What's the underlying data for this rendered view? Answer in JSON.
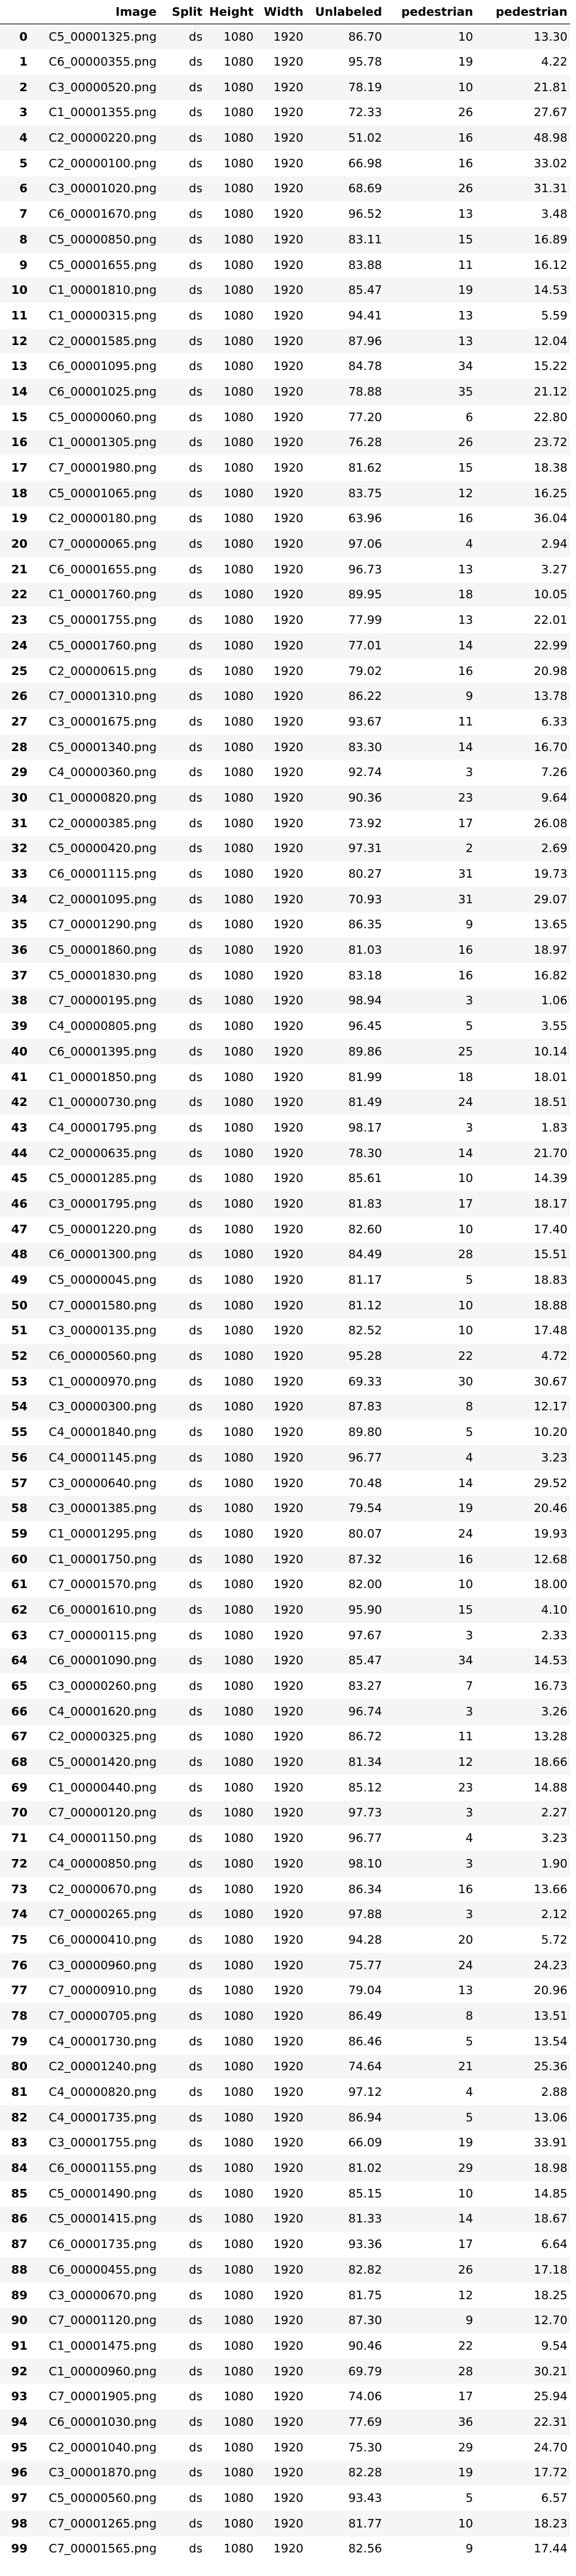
{
  "table": {
    "columns": [
      "",
      "Image",
      "Split",
      "Height",
      "Width",
      "Unlabeled",
      "pedestrian",
      "pedestrian"
    ],
    "rows": [
      [
        "0",
        "C5_00001325.png",
        "ds",
        "1080",
        "1920",
        "86.70",
        "10",
        "13.30"
      ],
      [
        "1",
        "C6_00000355.png",
        "ds",
        "1080",
        "1920",
        "95.78",
        "19",
        "4.22"
      ],
      [
        "2",
        "C3_00000520.png",
        "ds",
        "1080",
        "1920",
        "78.19",
        "10",
        "21.81"
      ],
      [
        "3",
        "C1_00001355.png",
        "ds",
        "1080",
        "1920",
        "72.33",
        "26",
        "27.67"
      ],
      [
        "4",
        "C2_00000220.png",
        "ds",
        "1080",
        "1920",
        "51.02",
        "16",
        "48.98"
      ],
      [
        "5",
        "C2_00000100.png",
        "ds",
        "1080",
        "1920",
        "66.98",
        "16",
        "33.02"
      ],
      [
        "6",
        "C3_00001020.png",
        "ds",
        "1080",
        "1920",
        "68.69",
        "26",
        "31.31"
      ],
      [
        "7",
        "C6_00001670.png",
        "ds",
        "1080",
        "1920",
        "96.52",
        "13",
        "3.48"
      ],
      [
        "8",
        "C5_00000850.png",
        "ds",
        "1080",
        "1920",
        "83.11",
        "15",
        "16.89"
      ],
      [
        "9",
        "C5_00001655.png",
        "ds",
        "1080",
        "1920",
        "83.88",
        "11",
        "16.12"
      ],
      [
        "10",
        "C1_00001810.png",
        "ds",
        "1080",
        "1920",
        "85.47",
        "19",
        "14.53"
      ],
      [
        "11",
        "C1_00000315.png",
        "ds",
        "1080",
        "1920",
        "94.41",
        "13",
        "5.59"
      ],
      [
        "12",
        "C2_00001585.png",
        "ds",
        "1080",
        "1920",
        "87.96",
        "13",
        "12.04"
      ],
      [
        "13",
        "C6_00001095.png",
        "ds",
        "1080",
        "1920",
        "84.78",
        "34",
        "15.22"
      ],
      [
        "14",
        "C6_00001025.png",
        "ds",
        "1080",
        "1920",
        "78.88",
        "35",
        "21.12"
      ],
      [
        "15",
        "C5_00000060.png",
        "ds",
        "1080",
        "1920",
        "77.20",
        "6",
        "22.80"
      ],
      [
        "16",
        "C1_00001305.png",
        "ds",
        "1080",
        "1920",
        "76.28",
        "26",
        "23.72"
      ],
      [
        "17",
        "C7_00001980.png",
        "ds",
        "1080",
        "1920",
        "81.62",
        "15",
        "18.38"
      ],
      [
        "18",
        "C5_00001065.png",
        "ds",
        "1080",
        "1920",
        "83.75",
        "12",
        "16.25"
      ],
      [
        "19",
        "C2_00000180.png",
        "ds",
        "1080",
        "1920",
        "63.96",
        "16",
        "36.04"
      ],
      [
        "20",
        "C7_00000065.png",
        "ds",
        "1080",
        "1920",
        "97.06",
        "4",
        "2.94"
      ],
      [
        "21",
        "C6_00001655.png",
        "ds",
        "1080",
        "1920",
        "96.73",
        "13",
        "3.27"
      ],
      [
        "22",
        "C1_00001760.png",
        "ds",
        "1080",
        "1920",
        "89.95",
        "18",
        "10.05"
      ],
      [
        "23",
        "C5_00001755.png",
        "ds",
        "1080",
        "1920",
        "77.99",
        "13",
        "22.01"
      ],
      [
        "24",
        "C5_00001760.png",
        "ds",
        "1080",
        "1920",
        "77.01",
        "14",
        "22.99"
      ],
      [
        "25",
        "C2_00000615.png",
        "ds",
        "1080",
        "1920",
        "79.02",
        "16",
        "20.98"
      ],
      [
        "26",
        "C7_00001310.png",
        "ds",
        "1080",
        "1920",
        "86.22",
        "9",
        "13.78"
      ],
      [
        "27",
        "C3_00001675.png",
        "ds",
        "1080",
        "1920",
        "93.67",
        "11",
        "6.33"
      ],
      [
        "28",
        "C5_00001340.png",
        "ds",
        "1080",
        "1920",
        "83.30",
        "14",
        "16.70"
      ],
      [
        "29",
        "C4_00000360.png",
        "ds",
        "1080",
        "1920",
        "92.74",
        "3",
        "7.26"
      ],
      [
        "30",
        "C1_00000820.png",
        "ds",
        "1080",
        "1920",
        "90.36",
        "23",
        "9.64"
      ],
      [
        "31",
        "C2_00000385.png",
        "ds",
        "1080",
        "1920",
        "73.92",
        "17",
        "26.08"
      ],
      [
        "32",
        "C5_00000420.png",
        "ds",
        "1080",
        "1920",
        "97.31",
        "2",
        "2.69"
      ],
      [
        "33",
        "C6_00001115.png",
        "ds",
        "1080",
        "1920",
        "80.27",
        "31",
        "19.73"
      ],
      [
        "34",
        "C2_00001095.png",
        "ds",
        "1080",
        "1920",
        "70.93",
        "31",
        "29.07"
      ],
      [
        "35",
        "C7_00001290.png",
        "ds",
        "1080",
        "1920",
        "86.35",
        "9",
        "13.65"
      ],
      [
        "36",
        "C5_00001860.png",
        "ds",
        "1080",
        "1920",
        "81.03",
        "16",
        "18.97"
      ],
      [
        "37",
        "C5_00001830.png",
        "ds",
        "1080",
        "1920",
        "83.18",
        "16",
        "16.82"
      ],
      [
        "38",
        "C7_00000195.png",
        "ds",
        "1080",
        "1920",
        "98.94",
        "3",
        "1.06"
      ],
      [
        "39",
        "C4_00000805.png",
        "ds",
        "1080",
        "1920",
        "96.45",
        "5",
        "3.55"
      ],
      [
        "40",
        "C6_00001395.png",
        "ds",
        "1080",
        "1920",
        "89.86",
        "25",
        "10.14"
      ],
      [
        "41",
        "C1_00001850.png",
        "ds",
        "1080",
        "1920",
        "81.99",
        "18",
        "18.01"
      ],
      [
        "42",
        "C1_00000730.png",
        "ds",
        "1080",
        "1920",
        "81.49",
        "24",
        "18.51"
      ],
      [
        "43",
        "C4_00001795.png",
        "ds",
        "1080",
        "1920",
        "98.17",
        "3",
        "1.83"
      ],
      [
        "44",
        "C2_00000635.png",
        "ds",
        "1080",
        "1920",
        "78.30",
        "14",
        "21.70"
      ],
      [
        "45",
        "C5_00001285.png",
        "ds",
        "1080",
        "1920",
        "85.61",
        "10",
        "14.39"
      ],
      [
        "46",
        "C3_00001795.png",
        "ds",
        "1080",
        "1920",
        "81.83",
        "17",
        "18.17"
      ],
      [
        "47",
        "C5_00001220.png",
        "ds",
        "1080",
        "1920",
        "82.60",
        "10",
        "17.40"
      ],
      [
        "48",
        "C6_00001300.png",
        "ds",
        "1080",
        "1920",
        "84.49",
        "28",
        "15.51"
      ],
      [
        "49",
        "C5_00000045.png",
        "ds",
        "1080",
        "1920",
        "81.17",
        "5",
        "18.83"
      ],
      [
        "50",
        "C7_00001580.png",
        "ds",
        "1080",
        "1920",
        "81.12",
        "10",
        "18.88"
      ],
      [
        "51",
        "C3_00000135.png",
        "ds",
        "1080",
        "1920",
        "82.52",
        "10",
        "17.48"
      ],
      [
        "52",
        "C6_00000560.png",
        "ds",
        "1080",
        "1920",
        "95.28",
        "22",
        "4.72"
      ],
      [
        "53",
        "C1_00000970.png",
        "ds",
        "1080",
        "1920",
        "69.33",
        "30",
        "30.67"
      ],
      [
        "54",
        "C3_00000300.png",
        "ds",
        "1080",
        "1920",
        "87.83",
        "8",
        "12.17"
      ],
      [
        "55",
        "C4_00001840.png",
        "ds",
        "1080",
        "1920",
        "89.80",
        "5",
        "10.20"
      ],
      [
        "56",
        "C4_00001145.png",
        "ds",
        "1080",
        "1920",
        "96.77",
        "4",
        "3.23"
      ],
      [
        "57",
        "C3_00000640.png",
        "ds",
        "1080",
        "1920",
        "70.48",
        "14",
        "29.52"
      ],
      [
        "58",
        "C3_00001385.png",
        "ds",
        "1080",
        "1920",
        "79.54",
        "19",
        "20.46"
      ],
      [
        "59",
        "C1_00001295.png",
        "ds",
        "1080",
        "1920",
        "80.07",
        "24",
        "19.93"
      ],
      [
        "60",
        "C1_00001750.png",
        "ds",
        "1080",
        "1920",
        "87.32",
        "16",
        "12.68"
      ],
      [
        "61",
        "C7_00001570.png",
        "ds",
        "1080",
        "1920",
        "82.00",
        "10",
        "18.00"
      ],
      [
        "62",
        "C6_00001610.png",
        "ds",
        "1080",
        "1920",
        "95.90",
        "15",
        "4.10"
      ],
      [
        "63",
        "C7_00000115.png",
        "ds",
        "1080",
        "1920",
        "97.67",
        "3",
        "2.33"
      ],
      [
        "64",
        "C6_00001090.png",
        "ds",
        "1080",
        "1920",
        "85.47",
        "34",
        "14.53"
      ],
      [
        "65",
        "C3_00000260.png",
        "ds",
        "1080",
        "1920",
        "83.27",
        "7",
        "16.73"
      ],
      [
        "66",
        "C4_00001620.png",
        "ds",
        "1080",
        "1920",
        "96.74",
        "3",
        "3.26"
      ],
      [
        "67",
        "C2_00000325.png",
        "ds",
        "1080",
        "1920",
        "86.72",
        "11",
        "13.28"
      ],
      [
        "68",
        "C5_00001420.png",
        "ds",
        "1080",
        "1920",
        "81.34",
        "12",
        "18.66"
      ],
      [
        "69",
        "C1_00000440.png",
        "ds",
        "1080",
        "1920",
        "85.12",
        "23",
        "14.88"
      ],
      [
        "70",
        "C7_00000120.png",
        "ds",
        "1080",
        "1920",
        "97.73",
        "3",
        "2.27"
      ],
      [
        "71",
        "C4_00001150.png",
        "ds",
        "1080",
        "1920",
        "96.77",
        "4",
        "3.23"
      ],
      [
        "72",
        "C4_00000850.png",
        "ds",
        "1080",
        "1920",
        "98.10",
        "3",
        "1.90"
      ],
      [
        "73",
        "C2_00000670.png",
        "ds",
        "1080",
        "1920",
        "86.34",
        "16",
        "13.66"
      ],
      [
        "74",
        "C7_00000265.png",
        "ds",
        "1080",
        "1920",
        "97.88",
        "3",
        "2.12"
      ],
      [
        "75",
        "C6_00000410.png",
        "ds",
        "1080",
        "1920",
        "94.28",
        "20",
        "5.72"
      ],
      [
        "76",
        "C3_00000960.png",
        "ds",
        "1080",
        "1920",
        "75.77",
        "24",
        "24.23"
      ],
      [
        "77",
        "C7_00000910.png",
        "ds",
        "1080",
        "1920",
        "79.04",
        "13",
        "20.96"
      ],
      [
        "78",
        "C7_00000705.png",
        "ds",
        "1080",
        "1920",
        "86.49",
        "8",
        "13.51"
      ],
      [
        "79",
        "C4_00001730.png",
        "ds",
        "1080",
        "1920",
        "86.46",
        "5",
        "13.54"
      ],
      [
        "80",
        "C2_00001240.png",
        "ds",
        "1080",
        "1920",
        "74.64",
        "21",
        "25.36"
      ],
      [
        "81",
        "C4_00000820.png",
        "ds",
        "1080",
        "1920",
        "97.12",
        "4",
        "2.88"
      ],
      [
        "82",
        "C4_00001735.png",
        "ds",
        "1080",
        "1920",
        "86.94",
        "5",
        "13.06"
      ],
      [
        "83",
        "C3_00001755.png",
        "ds",
        "1080",
        "1920",
        "66.09",
        "19",
        "33.91"
      ],
      [
        "84",
        "C6_00001155.png",
        "ds",
        "1080",
        "1920",
        "81.02",
        "29",
        "18.98"
      ],
      [
        "85",
        "C5_00001490.png",
        "ds",
        "1080",
        "1920",
        "85.15",
        "10",
        "14.85"
      ],
      [
        "86",
        "C5_00001415.png",
        "ds",
        "1080",
        "1920",
        "81.33",
        "14",
        "18.67"
      ],
      [
        "87",
        "C6_00001735.png",
        "ds",
        "1080",
        "1920",
        "93.36",
        "17",
        "6.64"
      ],
      [
        "88",
        "C6_00000455.png",
        "ds",
        "1080",
        "1920",
        "82.82",
        "26",
        "17.18"
      ],
      [
        "89",
        "C3_00000670.png",
        "ds",
        "1080",
        "1920",
        "81.75",
        "12",
        "18.25"
      ],
      [
        "90",
        "C7_00001120.png",
        "ds",
        "1080",
        "1920",
        "87.30",
        "9",
        "12.70"
      ],
      [
        "91",
        "C1_00001475.png",
        "ds",
        "1080",
        "1920",
        "90.46",
        "22",
        "9.54"
      ],
      [
        "92",
        "C1_00000960.png",
        "ds",
        "1080",
        "1920",
        "69.79",
        "28",
        "30.21"
      ],
      [
        "93",
        "C7_00001905.png",
        "ds",
        "1080",
        "1920",
        "74.06",
        "17",
        "25.94"
      ],
      [
        "94",
        "C6_00001030.png",
        "ds",
        "1080",
        "1920",
        "77.69",
        "36",
        "22.31"
      ],
      [
        "95",
        "C2_00001040.png",
        "ds",
        "1080",
        "1920",
        "75.30",
        "29",
        "24.70"
      ],
      [
        "96",
        "C3_00001870.png",
        "ds",
        "1080",
        "1920",
        "82.28",
        "19",
        "17.72"
      ],
      [
        "97",
        "C5_00000560.png",
        "ds",
        "1080",
        "1920",
        "93.43",
        "5",
        "6.57"
      ],
      [
        "98",
        "C7_00001265.png",
        "ds",
        "1080",
        "1920",
        "81.77",
        "10",
        "18.23"
      ],
      [
        "99",
        "C7_00001565.png",
        "ds",
        "1080",
        "1920",
        "82.56",
        "9",
        "17.44"
      ]
    ]
  }
}
